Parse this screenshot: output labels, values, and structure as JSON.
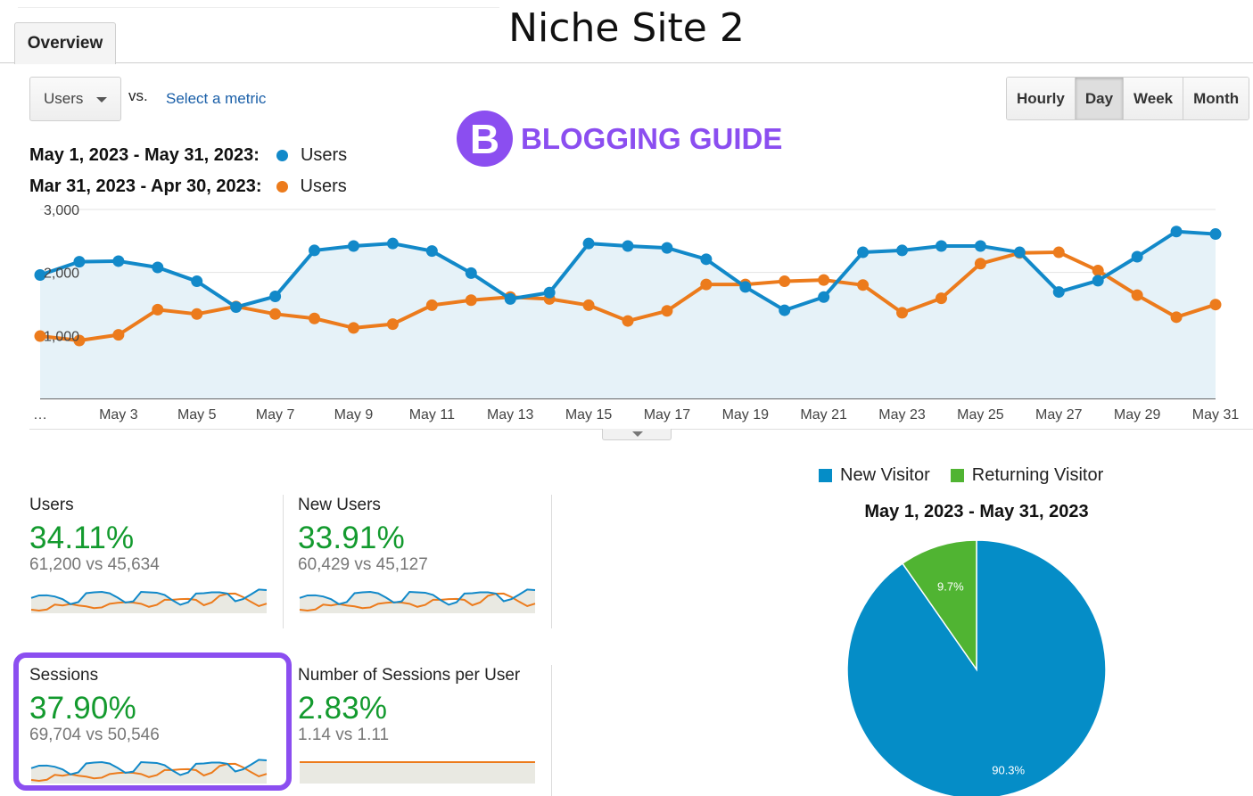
{
  "page_title": "Niche Site 2",
  "tabs": [
    {
      "label": "Overview",
      "active": true
    }
  ],
  "metric_selector": {
    "value": "Users",
    "vs_label": "vs.",
    "select_metric_link": "Select a metric"
  },
  "granularity": {
    "options": [
      "Hourly",
      "Day",
      "Week",
      "Month"
    ],
    "active": "Day"
  },
  "logo": {
    "letter": "B",
    "text": "BLOGGING GUIDE",
    "color": "#8b4ef0"
  },
  "legend": [
    {
      "range": "May 1, 2023 - May 31, 2023:",
      "label": "Users",
      "color": "#1289c9"
    },
    {
      "range": "Mar 31, 2023 - Apr 30, 2023:",
      "label": "Users",
      "color": "#ec7b1c"
    }
  ],
  "chart_data": {
    "type": "line",
    "y_ticks": [
      "3,000",
      "2,000",
      "1,000"
    ],
    "ylim": [
      0,
      3000
    ],
    "x_first_label": "…",
    "x_tick_labels": [
      "May 3",
      "May 5",
      "May 7",
      "May 9",
      "May 11",
      "May 13",
      "May 15",
      "May 17",
      "May 19",
      "May 21",
      "May 23",
      "May 25",
      "May 27",
      "May 29",
      "May 31"
    ],
    "series": [
      {
        "name": "Users",
        "color": "#1289c9",
        "area": true,
        "values": [
          1960,
          2170,
          2180,
          2080,
          1860,
          1450,
          1620,
          2350,
          2420,
          2460,
          2340,
          1990,
          1580,
          1680,
          2460,
          2420,
          2390,
          2210,
          1770,
          1400,
          1610,
          2320,
          2350,
          2420,
          2420,
          2320,
          1690,
          1870,
          2250,
          2650,
          2610
        ]
      },
      {
        "name": "Users",
        "color": "#ec7b1c",
        "area": false,
        "values": [
          990,
          920,
          1010,
          1410,
          1340,
          1460,
          1340,
          1270,
          1120,
          1180,
          1480,
          1560,
          1610,
          1580,
          1480,
          1230,
          1390,
          1810,
          1810,
          1860,
          1880,
          1800,
          1360,
          1590,
          2140,
          2310,
          2320,
          2030,
          1640,
          1290,
          1490
        ]
      }
    ]
  },
  "cards": [
    {
      "name": "Users",
      "pct": "34.11%",
      "cmp": "61,200 vs 45,634",
      "spark": "varied"
    },
    {
      "name": "New Users",
      "pct": "33.91%",
      "cmp": "60,429 vs 45,127",
      "spark": "varied"
    },
    {
      "name": "Sessions",
      "pct": "37.90%",
      "cmp": "69,704 vs 50,546",
      "spark": "varied",
      "highlighted": true
    },
    {
      "name": "Number of Sessions per User",
      "pct": "2.83%",
      "cmp": "1.14 vs 1.11",
      "spark": "flat"
    }
  ],
  "pie": {
    "legend": [
      {
        "label": "New Visitor",
        "color": "#058dc7"
      },
      {
        "label": "Returning Visitor",
        "color": "#50b432"
      }
    ],
    "title": "May 1, 2023 - May 31, 2023",
    "slices": [
      {
        "label": "New Visitor",
        "value": 90.3,
        "display": "90.3%",
        "color": "#058dc7"
      },
      {
        "label": "Returning Visitor",
        "value": 9.7,
        "display": "9.7%",
        "color": "#50b432"
      }
    ]
  }
}
